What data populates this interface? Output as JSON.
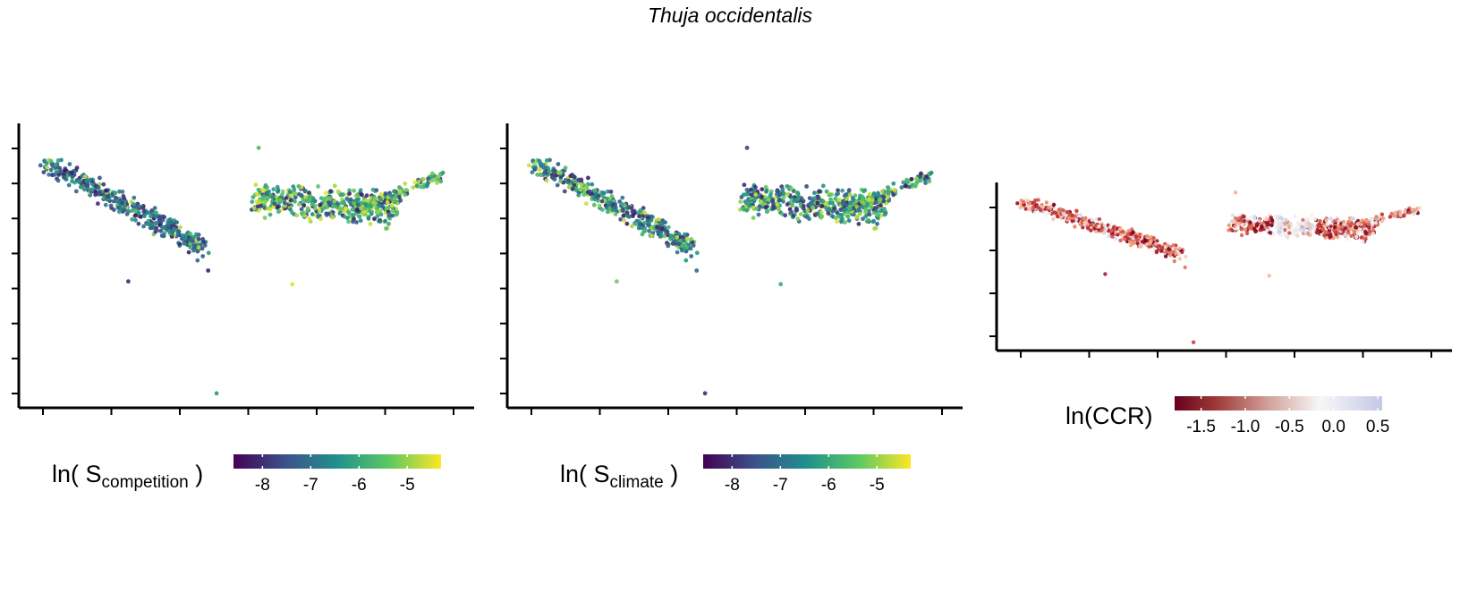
{
  "title": "Thuja occidentalis",
  "chart_data": [
    {
      "type": "scatter",
      "panel": "left",
      "legend": {
        "title_prefix": "ln(",
        "title_symbol": "S",
        "title_subscript": "competition",
        "title_suffix": ")",
        "range": [
          -8.6,
          -4.3
        ],
        "ticks": [
          -8,
          -7,
          -6,
          -5
        ],
        "tick_labels": [
          "-8",
          "-7",
          "-6",
          "-5"
        ],
        "palette": [
          "#440154",
          "#3b528b",
          "#21908c",
          "#5dc863",
          "#fde725"
        ],
        "placement": "bottom"
      },
      "axes": {
        "x_ticks": 7,
        "y_ticks": 8,
        "tick_labels": "hidden"
      },
      "clusters": [
        {
          "name": "west",
          "cx": 0.18,
          "cy": 0.32,
          "n": 420,
          "hi_share": 0.15
        },
        {
          "name": "east",
          "cx": 0.7,
          "cy": 0.3,
          "n": 560,
          "hi_share": 0.55
        }
      ]
    },
    {
      "type": "scatter",
      "panel": "middle",
      "legend": {
        "title_prefix": "ln(",
        "title_symbol": "S",
        "title_subscript": "climate",
        "title_suffix": ")",
        "range": [
          -8.6,
          -4.3
        ],
        "ticks": [
          -8,
          -7,
          -6,
          -5
        ],
        "tick_labels": [
          "-8",
          "-7",
          "-6",
          "-5"
        ],
        "palette": [
          "#440154",
          "#3b528b",
          "#21908c",
          "#5dc863",
          "#fde725"
        ],
        "placement": "bottom"
      },
      "axes": {
        "x_ticks": 7,
        "y_ticks": 8,
        "tick_labels": "hidden"
      },
      "clusters": [
        {
          "name": "west",
          "cx": 0.18,
          "cy": 0.32,
          "n": 420,
          "hi_share": 0.35
        },
        {
          "name": "east",
          "cx": 0.7,
          "cy": 0.3,
          "n": 560,
          "hi_share": 0.45
        }
      ]
    },
    {
      "type": "scatter",
      "panel": "right",
      "legend": {
        "title": "ln(CCR)",
        "range": [
          -1.8,
          0.55
        ],
        "ticks": [
          -1.5,
          -1.0,
          -0.5,
          0.0,
          0.5
        ],
        "tick_labels": [
          "-1.5",
          "-1.0",
          "-0.5",
          "0.0",
          "0.5"
        ],
        "palette": [
          "#67001f",
          "#b2182b",
          "#d6604d",
          "#f4a582",
          "#f7f7f7",
          "#c5c8e8"
        ],
        "placement": "right"
      },
      "axes": {
        "x_ticks": 7,
        "y_ticks": 4,
        "tick_labels": "hidden"
      },
      "clusters": [
        {
          "name": "west",
          "cx": 0.18,
          "cy": 0.45,
          "n": 420
        },
        {
          "name": "east",
          "cx": 0.7,
          "cy": 0.4,
          "n": 560
        }
      ]
    }
  ]
}
